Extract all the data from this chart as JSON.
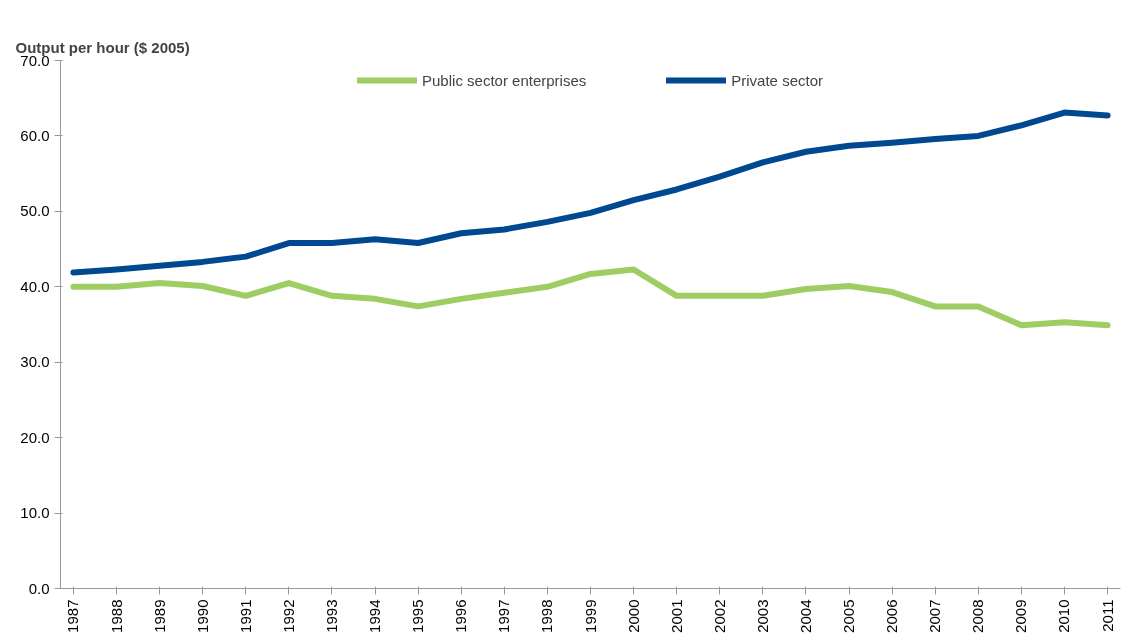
{
  "chart_data": {
    "type": "line",
    "ylabel": "Output per hour ($ 2005)",
    "categories": [
      "1987",
      "1988",
      "1989",
      "1990",
      "1991",
      "1992",
      "1993",
      "1994",
      "1995",
      "1996",
      "1997",
      "1998",
      "1999",
      "2000",
      "2001",
      "2002",
      "2003",
      "2004",
      "2005",
      "2006",
      "2007",
      "2008",
      "2009",
      "2010",
      "2011"
    ],
    "series": [
      {
        "name": "Public sector enterprises",
        "color": "#9dcd63",
        "values": [
          40.0,
          40.0,
          40.5,
          40.1,
          38.8,
          40.5,
          38.8,
          38.4,
          37.4,
          38.4,
          39.2,
          40.0,
          41.7,
          42.3,
          38.8,
          38.8,
          38.8,
          39.7,
          40.1,
          39.3,
          37.4,
          37.4,
          34.9,
          35.3,
          34.9
        ]
      },
      {
        "name": "Private sector",
        "color": "#004990",
        "values": [
          41.9,
          42.3,
          42.8,
          43.3,
          44.0,
          45.8,
          45.8,
          46.3,
          45.8,
          47.1,
          47.6,
          48.6,
          49.8,
          51.5,
          52.9,
          54.6,
          56.5,
          57.9,
          58.7,
          59.1,
          59.6,
          60.0,
          61.4,
          63.1,
          62.7
        ]
      }
    ],
    "ylim": [
      0,
      70
    ],
    "yticks": [
      {
        "value": 0,
        "label": "0.0"
      },
      {
        "value": 10,
        "label": "10.0"
      },
      {
        "value": 20,
        "label": "20.0"
      },
      {
        "value": 30,
        "label": "30.0"
      },
      {
        "value": 40,
        "label": "40.0"
      },
      {
        "value": 50,
        "label": "50.0"
      },
      {
        "value": 60,
        "label": "60.0"
      },
      {
        "value": 70,
        "label": "70.0"
      }
    ],
    "grid": false,
    "legend": "top",
    "marker": "none",
    "line_style": "solid"
  }
}
